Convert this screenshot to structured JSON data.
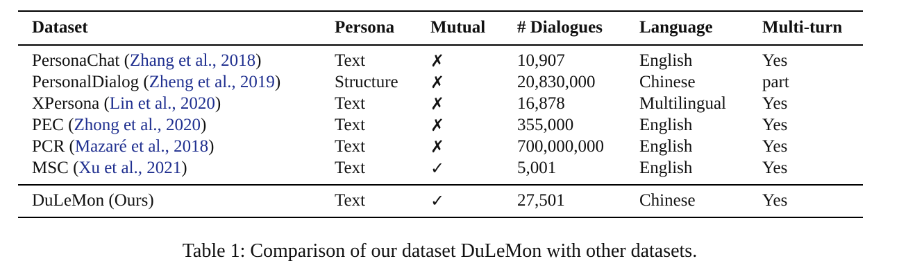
{
  "table": {
    "headers": [
      "Dataset",
      "Persona",
      "Mutual",
      "# Dialogues",
      "Language",
      "Multi-turn"
    ],
    "rows": [
      {
        "name": "PersonaChat",
        "cite": "Zhang et al., 2018",
        "persona": "Text",
        "mutual": "✗",
        "dialogues": "10,907",
        "language": "English",
        "multiturn": "Yes"
      },
      {
        "name": "PersonalDialog",
        "cite": "Zheng et al., 2019",
        "persona": "Structure",
        "mutual": "✗",
        "dialogues": "20,830,000",
        "language": "Chinese",
        "multiturn": "part"
      },
      {
        "name": "XPersona",
        "cite": "Lin et al., 2020",
        "persona": "Text",
        "mutual": "✗",
        "dialogues": "16,878",
        "language": "Multilingual",
        "multiturn": "Yes"
      },
      {
        "name": "PEC",
        "cite": "Zhong et al., 2020",
        "persona": "Text",
        "mutual": "✗",
        "dialogues": "355,000",
        "language": "English",
        "multiturn": "Yes"
      },
      {
        "name": "PCR",
        "cite": "Mazaré et al., 2018",
        "persona": "Text",
        "mutual": "✗",
        "dialogues": "700,000,000",
        "language": "English",
        "multiturn": "Yes"
      },
      {
        "name": "MSC",
        "cite": "Xu et al., 2021",
        "persona": "Text",
        "mutual": "✓",
        "dialogues": "5,001",
        "language": "English",
        "multiturn": "Yes"
      }
    ],
    "ours": {
      "name": "DuLeMon (Ours)",
      "persona": "Text",
      "mutual": "✓",
      "dialogues": "27,501",
      "language": "Chinese",
      "multiturn": "Yes"
    }
  },
  "caption": "Table 1:  Comparison of our dataset DuLeMon with other datasets."
}
